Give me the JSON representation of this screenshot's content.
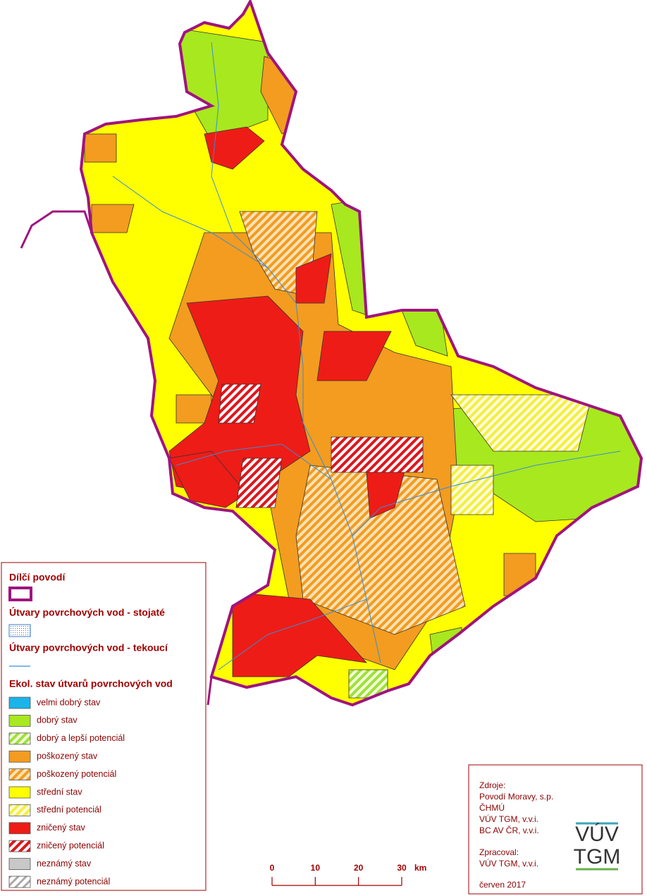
{
  "legend": {
    "subbasin_title": "Dílčí povodí",
    "standing_title": "Útvary povrchových vod - stojaté",
    "flowing_title": "Útvary povrchových vod - tekoucí",
    "status_title": "Ekol. stav útvarů povrchových vod",
    "items": [
      "velmi dobrý stav",
      "dobrý stav",
      "dobrý a lepší potenciál",
      "poškozený stav",
      "poškozený potenciál",
      "střední stav",
      "střední potenciál",
      "zničený stav",
      "zničený potenciál",
      "neznámý stav",
      "neznámý potenciál"
    ]
  },
  "scale": {
    "ticks": [
      0,
      10,
      20,
      30
    ],
    "unit": "km"
  },
  "sources": {
    "label": "Zdroje:",
    "lines": [
      "Povodí Moravy, s.p.",
      "ČHMÚ",
      "VÚV TGM, v.v.i.",
      "BC AV ČR, v.v.i."
    ],
    "processed_label": "Zpracoval:",
    "processed_by": "VÚV TGM, v.v.i.",
    "date": "červen 2017"
  },
  "logo": {
    "line1": "VÚV",
    "line2": "TGM"
  }
}
